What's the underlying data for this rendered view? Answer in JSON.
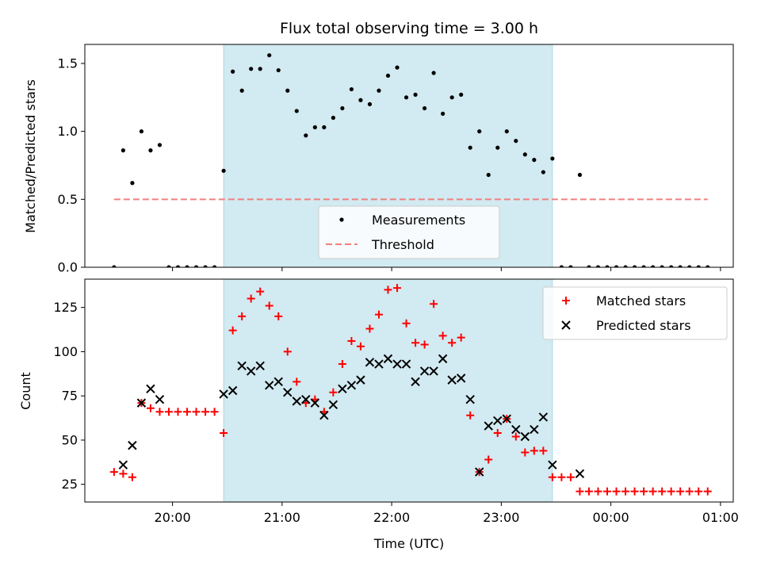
{
  "chart_data": [
    {
      "type": "scatter",
      "title": "Flux total observing time = 3.00 h",
      "xlabel": "",
      "ylabel": "Matched/Predicted stars",
      "xlim": [
        "19:12",
        "01:07"
      ],
      "ylim": [
        0,
        1.64
      ],
      "grid": false,
      "legend": "lower-center",
      "shaded_region": {
        "x": [
          "20:28",
          "23:28"
        ],
        "color": "#add8e6"
      },
      "x_ticks": [
        "20:00",
        "21:00",
        "22:00",
        "23:00",
        "00:00",
        "01:00"
      ],
      "y_ticks": [
        "0.0",
        "0.5",
        "1.0",
        "1.5"
      ],
      "series": [
        {
          "name": "Measurements",
          "marker": "dot",
          "color": "#000000",
          "points": [
            [
              "19:28",
              0.0
            ],
            [
              "19:33",
              0.86
            ],
            [
              "19:38",
              0.62
            ],
            [
              "19:43",
              1.0
            ],
            [
              "19:48",
              0.86
            ],
            [
              "19:53",
              0.9
            ],
            [
              "19:58",
              0.0
            ],
            [
              "20:03",
              0.0
            ],
            [
              "20:08",
              0.0
            ],
            [
              "20:13",
              0.0
            ],
            [
              "20:18",
              0.0
            ],
            [
              "20:23",
              0.0
            ],
            [
              "20:28",
              0.71
            ],
            [
              "20:33",
              1.44
            ],
            [
              "20:38",
              1.3
            ],
            [
              "20:43",
              1.46
            ],
            [
              "20:48",
              1.46
            ],
            [
              "20:53",
              1.56
            ],
            [
              "20:58",
              1.45
            ],
            [
              "21:03",
              1.3
            ],
            [
              "21:08",
              1.15
            ],
            [
              "21:13",
              0.97
            ],
            [
              "21:18",
              1.03
            ],
            [
              "21:23",
              1.03
            ],
            [
              "21:28",
              1.1
            ],
            [
              "21:33",
              1.17
            ],
            [
              "21:38",
              1.31
            ],
            [
              "21:43",
              1.23
            ],
            [
              "21:48",
              1.2
            ],
            [
              "21:53",
              1.3
            ],
            [
              "21:58",
              1.41
            ],
            [
              "22:03",
              1.47
            ],
            [
              "22:08",
              1.25
            ],
            [
              "22:13",
              1.27
            ],
            [
              "22:18",
              1.17
            ],
            [
              "22:23",
              1.43
            ],
            [
              "22:28",
              1.13
            ],
            [
              "22:33",
              1.25
            ],
            [
              "22:38",
              1.27
            ],
            [
              "22:43",
              0.88
            ],
            [
              "22:48",
              1.0
            ],
            [
              "22:53",
              0.68
            ],
            [
              "22:58",
              0.88
            ],
            [
              "23:03",
              1.0
            ],
            [
              "23:08",
              0.93
            ],
            [
              "23:13",
              0.83
            ],
            [
              "23:18",
              0.79
            ],
            [
              "23:23",
              0.7
            ],
            [
              "23:28",
              0.8
            ],
            [
              "23:33",
              0.0
            ],
            [
              "23:38",
              0.0
            ],
            [
              "23:43",
              0.68
            ],
            [
              "23:48",
              0.0
            ],
            [
              "23:53",
              0.0
            ],
            [
              "23:58",
              0.0
            ],
            [
              "00:03",
              0.0
            ],
            [
              "00:08",
              0.0
            ],
            [
              "00:13",
              0.0
            ],
            [
              "00:18",
              0.0
            ],
            [
              "00:23",
              0.0
            ],
            [
              "00:28",
              0.0
            ],
            [
              "00:33",
              0.0
            ],
            [
              "00:38",
              0.0
            ],
            [
              "00:43",
              0.0
            ],
            [
              "00:48",
              0.0
            ],
            [
              "00:53",
              0.0
            ]
          ]
        },
        {
          "name": "Threshold",
          "marker": "dashed-line",
          "color": "#f08080",
          "points": [
            [
              "19:28",
              0.5
            ],
            [
              "00:53",
              0.5
            ]
          ]
        }
      ]
    },
    {
      "type": "scatter",
      "title": "",
      "xlabel": "Time (UTC)",
      "ylabel": "Count",
      "xlim": [
        "19:12",
        "01:07"
      ],
      "ylim": [
        15,
        141
      ],
      "grid": false,
      "legend": "upper-right",
      "shaded_region": {
        "x": [
          "20:28",
          "23:28"
        ],
        "color": "#add8e6"
      },
      "x_ticks": [
        "20:00",
        "21:00",
        "22:00",
        "23:00",
        "00:00",
        "01:00"
      ],
      "y_ticks": [
        "25",
        "50",
        "75",
        "100",
        "125"
      ],
      "series": [
        {
          "name": "Matched stars",
          "marker": "plus",
          "color": "#ff0000",
          "points": [
            [
              "19:28",
              32
            ],
            [
              "19:33",
              31
            ],
            [
              "19:38",
              29
            ],
            [
              "19:43",
              71
            ],
            [
              "19:48",
              68
            ],
            [
              "19:53",
              66
            ],
            [
              "19:58",
              66
            ],
            [
              "20:03",
              66
            ],
            [
              "20:08",
              66
            ],
            [
              "20:13",
              66
            ],
            [
              "20:18",
              66
            ],
            [
              "20:23",
              66
            ],
            [
              "20:28",
              54
            ],
            [
              "20:33",
              112
            ],
            [
              "20:38",
              120
            ],
            [
              "20:43",
              130
            ],
            [
              "20:48",
              134
            ],
            [
              "20:53",
              126
            ],
            [
              "20:58",
              120
            ],
            [
              "21:03",
              100
            ],
            [
              "21:08",
              83
            ],
            [
              "21:13",
              71
            ],
            [
              "21:18",
              73
            ],
            [
              "21:23",
              66
            ],
            [
              "21:28",
              77
            ],
            [
              "21:33",
              93
            ],
            [
              "21:38",
              106
            ],
            [
              "21:43",
              103
            ],
            [
              "21:48",
              113
            ],
            [
              "21:53",
              121
            ],
            [
              "21:58",
              135
            ],
            [
              "22:03",
              136
            ],
            [
              "22:08",
              116
            ],
            [
              "22:13",
              105
            ],
            [
              "22:18",
              104
            ],
            [
              "22:23",
              127
            ],
            [
              "22:28",
              109
            ],
            [
              "22:33",
              105
            ],
            [
              "22:38",
              108
            ],
            [
              "22:43",
              64
            ],
            [
              "22:48",
              32
            ],
            [
              "22:53",
              39
            ],
            [
              "22:58",
              54
            ],
            [
              "23:03",
              62
            ],
            [
              "23:08",
              52
            ],
            [
              "23:13",
              43
            ],
            [
              "23:18",
              44
            ],
            [
              "23:23",
              44
            ],
            [
              "23:28",
              29
            ],
            [
              "23:33",
              29
            ],
            [
              "23:38",
              29
            ],
            [
              "23:43",
              21
            ],
            [
              "23:48",
              21
            ],
            [
              "23:53",
              21
            ],
            [
              "23:58",
              21
            ],
            [
              "00:03",
              21
            ],
            [
              "00:08",
              21
            ],
            [
              "00:13",
              21
            ],
            [
              "00:18",
              21
            ],
            [
              "00:23",
              21
            ],
            [
              "00:28",
              21
            ],
            [
              "00:33",
              21
            ],
            [
              "00:38",
              21
            ],
            [
              "00:43",
              21
            ],
            [
              "00:48",
              21
            ],
            [
              "00:53",
              21
            ]
          ]
        },
        {
          "name": "Predicted stars",
          "marker": "x",
          "color": "#000000",
          "points": [
            [
              "19:33",
              36
            ],
            [
              "19:38",
              47
            ],
            [
              "19:43",
              71
            ],
            [
              "19:48",
              79
            ],
            [
              "19:53",
              73
            ],
            [
              "20:28",
              76
            ],
            [
              "20:33",
              78
            ],
            [
              "20:38",
              92
            ],
            [
              "20:43",
              89
            ],
            [
              "20:48",
              92
            ],
            [
              "20:53",
              81
            ],
            [
              "20:58",
              83
            ],
            [
              "21:03",
              77
            ],
            [
              "21:08",
              72
            ],
            [
              "21:13",
              73
            ],
            [
              "21:18",
              71
            ],
            [
              "21:23",
              64
            ],
            [
              "21:28",
              70
            ],
            [
              "21:33",
              79
            ],
            [
              "21:38",
              81
            ],
            [
              "21:43",
              84
            ],
            [
              "21:48",
              94
            ],
            [
              "21:53",
              93
            ],
            [
              "21:58",
              96
            ],
            [
              "22:03",
              93
            ],
            [
              "22:08",
              93
            ],
            [
              "22:13",
              83
            ],
            [
              "22:18",
              89
            ],
            [
              "22:23",
              89
            ],
            [
              "22:28",
              96
            ],
            [
              "22:33",
              84
            ],
            [
              "22:38",
              85
            ],
            [
              "22:43",
              73
            ],
            [
              "22:48",
              32
            ],
            [
              "22:53",
              58
            ],
            [
              "22:58",
              61
            ],
            [
              "23:03",
              62
            ],
            [
              "23:08",
              56
            ],
            [
              "23:13",
              52
            ],
            [
              "23:18",
              56
            ],
            [
              "23:23",
              63
            ],
            [
              "23:28",
              36
            ],
            [
              "23:43",
              31
            ]
          ]
        }
      ]
    }
  ]
}
